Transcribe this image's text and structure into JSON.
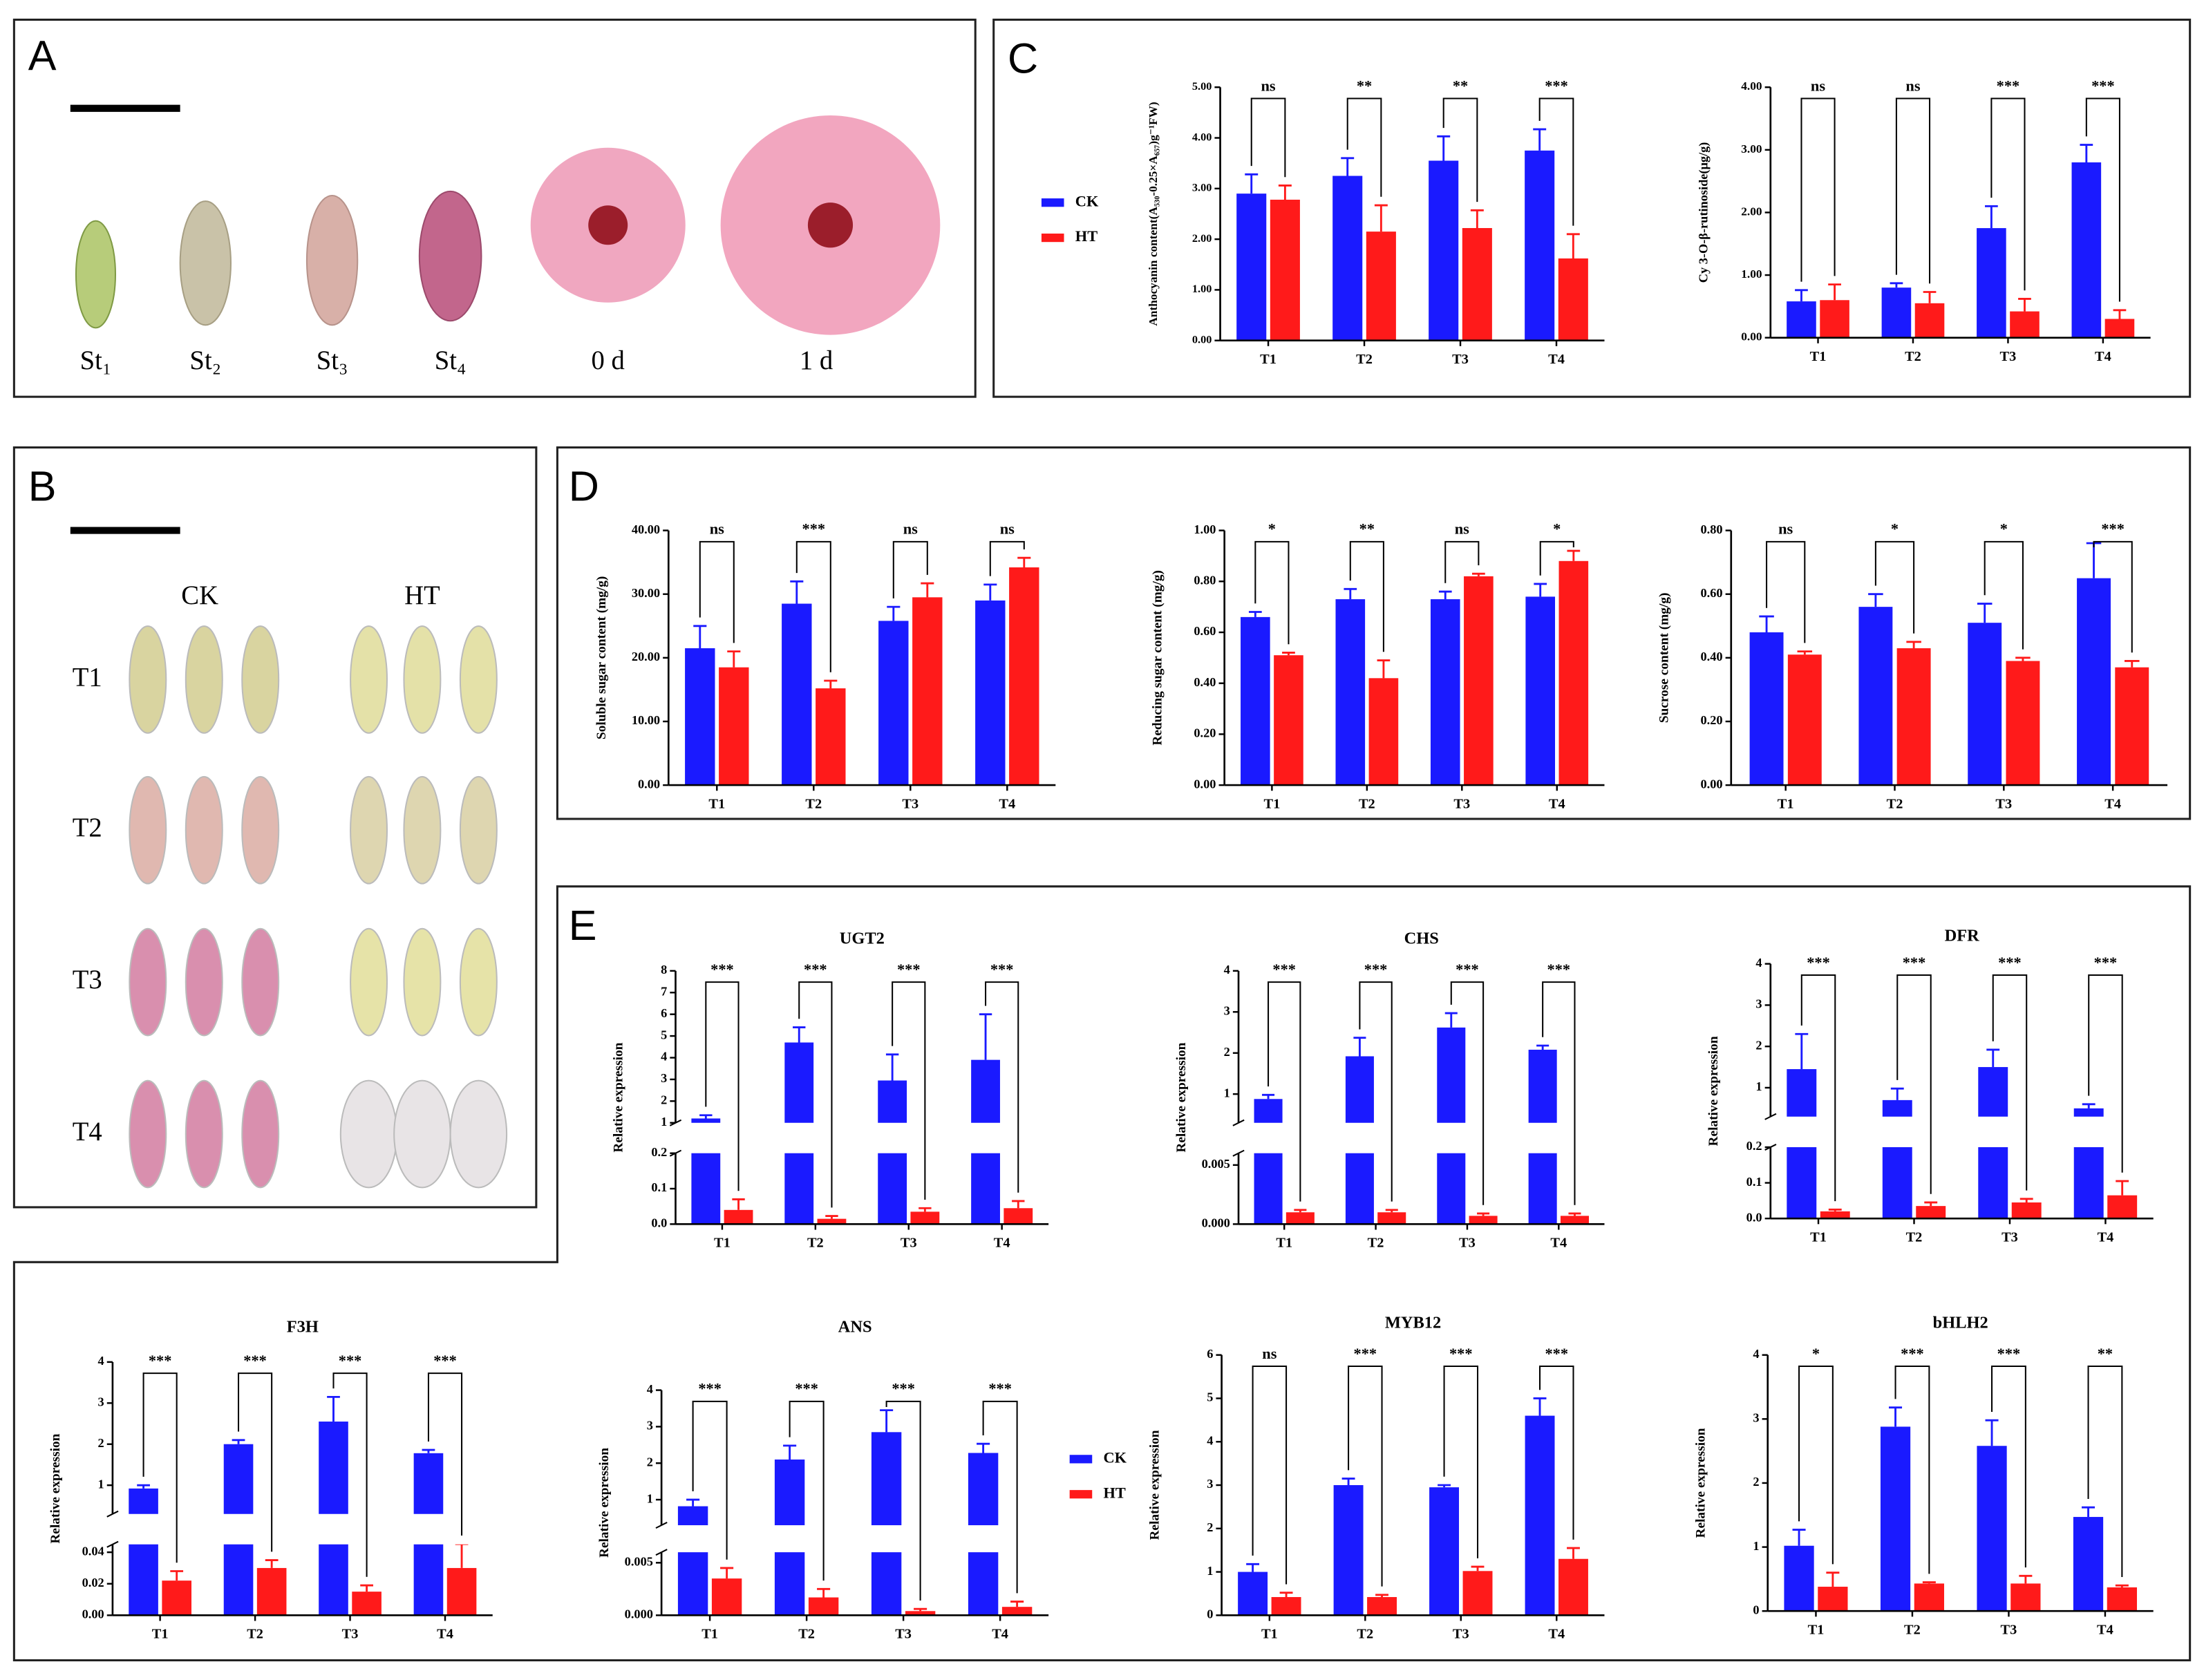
{
  "panel_labels": [
    "A",
    "B",
    "C",
    "D",
    "E"
  ],
  "stages": [
    "St₁",
    "St₂",
    "St₃",
    "St₄",
    "0 d",
    "1 d"
  ],
  "treatments": [
    "CK",
    "HT"
  ],
  "rows": [
    "T1",
    "T2",
    "T3",
    "T4"
  ],
  "chart_data": [
    {
      "type": "bar",
      "ylabel": "Anthocyanin content(A₅₃₀-0.25×A₆₅₇)g⁻¹FW)",
      "legend": true,
      "categories": [
        "T1",
        "T2",
        "T3",
        "T4"
      ],
      "series": [
        {
          "name": "CK",
          "color": "#1a1aff",
          "values": [
            2.9,
            3.25,
            3.55,
            3.75
          ],
          "errors": [
            0.38,
            0.35,
            0.48,
            0.42
          ]
        },
        {
          "name": "HT",
          "color": "#ff1a1a",
          "values": [
            2.78,
            2.15,
            2.22,
            1.62
          ],
          "errors": [
            0.28,
            0.52,
            0.35,
            0.48
          ]
        }
      ],
      "significance": [
        "ns",
        "**",
        "**",
        "***"
      ],
      "ylim": [
        0,
        5
      ],
      "yticks": [
        {
          "value": 0,
          "label": "0.00"
        },
        {
          "value": 1,
          "label": "1.00"
        },
        {
          "value": 2,
          "label": "2.00"
        },
        {
          "value": 3,
          "label": "3.00"
        },
        {
          "value": 4,
          "label": "4.00"
        },
        {
          "value": 5,
          "label": "5.00"
        }
      ]
    },
    {
      "type": "bar",
      "ylabel": "Cy 3-O-β-rutinoside(μg/g)",
      "categories": [
        "T1",
        "T2",
        "T3",
        "T4"
      ],
      "series": [
        {
          "name": "CK",
          "color": "#1a1aff",
          "values": [
            0.58,
            0.8,
            1.75,
            2.8
          ],
          "errors": [
            0.18,
            0.07,
            0.35,
            0.28
          ]
        },
        {
          "name": "HT",
          "color": "#ff1a1a",
          "values": [
            0.6,
            0.55,
            0.42,
            0.3
          ],
          "errors": [
            0.25,
            0.18,
            0.2,
            0.14
          ]
        }
      ],
      "significance": [
        "ns",
        "ns",
        "***",
        "***"
      ],
      "ylim": [
        0,
        4
      ],
      "yticks": [
        {
          "value": 0,
          "label": "0.00"
        },
        {
          "value": 1,
          "label": "1.00"
        },
        {
          "value": 2,
          "label": "2.00"
        },
        {
          "value": 3,
          "label": "3.00"
        },
        {
          "value": 4,
          "label": "4.00"
        }
      ]
    },
    {
      "type": "bar",
      "ylabel": "Soluble sugar content (mg/g)",
      "categories": [
        "T1",
        "T2",
        "T3",
        "T4"
      ],
      "series": [
        {
          "name": "CK",
          "color": "#1a1aff",
          "values": [
            21.5,
            28.5,
            25.8,
            29
          ],
          "errors": [
            3.5,
            3.5,
            2.2,
            2.5
          ]
        },
        {
          "name": "HT",
          "color": "#ff1a1a",
          "values": [
            18.5,
            15.2,
            29.5,
            34.2
          ],
          "errors": [
            2.5,
            1.2,
            2.2,
            1.5
          ]
        }
      ],
      "significance": [
        "ns",
        "***",
        "ns",
        "ns"
      ],
      "ylim": [
        0,
        40
      ],
      "yticks": [
        {
          "value": 0,
          "label": "0.00"
        },
        {
          "value": 10,
          "label": "10.00"
        },
        {
          "value": 20,
          "label": "20.00"
        },
        {
          "value": 30,
          "label": "30.00"
        },
        {
          "value": 40,
          "label": "40.00"
        }
      ]
    },
    {
      "type": "bar",
      "ylabel": "Reducing sugar content (mg/g)",
      "categories": [
        "T1",
        "T2",
        "T3",
        "T4"
      ],
      "series": [
        {
          "name": "CK",
          "color": "#1a1aff",
          "values": [
            0.66,
            0.73,
            0.73,
            0.74
          ],
          "errors": [
            0.02,
            0.04,
            0.03,
            0.05
          ]
        },
        {
          "name": "HT",
          "color": "#ff1a1a",
          "values": [
            0.51,
            0.42,
            0.82,
            0.88
          ],
          "errors": [
            0.01,
            0.07,
            0.01,
            0.04
          ]
        }
      ],
      "significance": [
        "*",
        "**",
        "ns",
        "*"
      ],
      "ylim": [
        0,
        1
      ],
      "yticks": [
        {
          "value": 0,
          "label": "0.00"
        },
        {
          "value": 0.2,
          "label": "0.20"
        },
        {
          "value": 0.4,
          "label": "0.40"
        },
        {
          "value": 0.6,
          "label": "0.60"
        },
        {
          "value": 0.8,
          "label": "0.80"
        },
        {
          "value": 1,
          "label": "1.00"
        }
      ]
    },
    {
      "type": "bar",
      "ylabel": "Sucrose content (mg/g)",
      "categories": [
        "T1",
        "T2",
        "T3",
        "T4"
      ],
      "series": [
        {
          "name": "CK",
          "color": "#1a1aff",
          "values": [
            0.48,
            0.56,
            0.51,
            0.65
          ],
          "errors": [
            0.05,
            0.04,
            0.06,
            0.11
          ]
        },
        {
          "name": "HT",
          "color": "#ff1a1a",
          "values": [
            0.41,
            0.43,
            0.39,
            0.37
          ],
          "errors": [
            0.01,
            0.02,
            0.01,
            0.02
          ]
        }
      ],
      "significance": [
        "ns",
        "*",
        "*",
        "***"
      ],
      "ylim": [
        0,
        0.8
      ],
      "yticks": [
        {
          "value": 0,
          "label": "0.00"
        },
        {
          "value": 0.2,
          "label": "0.20"
        },
        {
          "value": 0.4,
          "label": "0.40"
        },
        {
          "value": 0.6,
          "label": "0.60"
        },
        {
          "value": 0.8,
          "label": "0.80"
        }
      ]
    },
    {
      "type": "bar",
      "title": "UGT2",
      "ylabel": "Relative expression",
      "categories": [
        "T1",
        "T2",
        "T3",
        "T4"
      ],
      "series": [
        {
          "name": "CK",
          "color": "#1a1aff",
          "values": [
            1.2,
            4.7,
            2.95,
            3.9
          ],
          "errors": [
            0.15,
            0.7,
            1.2,
            2.1
          ]
        },
        {
          "name": "HT",
          "color": "#ff1a1a",
          "values": [
            0.04,
            0.015,
            0.035,
            0.045
          ],
          "errors": [
            0.03,
            0.008,
            0.01,
            0.02
          ]
        }
      ],
      "significance": [
        "***",
        "***",
        "***",
        "***"
      ],
      "segments": [
        {
          "ylim": [
            0,
            0.2
          ],
          "yticks": [
            {
              "value": 0,
              "label": "0.0"
            },
            0.1,
            0.2
          ]
        },
        {
          "ylim": [
            1,
            8
          ],
          "yticks": [
            1,
            2,
            3,
            4,
            5,
            6,
            7,
            8
          ]
        }
      ]
    },
    {
      "type": "bar",
      "title": "CHS",
      "ylabel": "Relative expression",
      "categories": [
        "T1",
        "T2",
        "T3",
        "T4"
      ],
      "series": [
        {
          "name": "CK",
          "color": "#1a1aff",
          "values": [
            0.88,
            1.92,
            2.62,
            2.08
          ],
          "errors": [
            0.1,
            0.45,
            0.35,
            0.1
          ]
        },
        {
          "name": "HT",
          "color": "#ff1a1a",
          "values": [
            0.001,
            0.001,
            0.0007,
            0.0007
          ],
          "errors": [
            0.0002,
            0.0002,
            0.0002,
            0.0002
          ]
        }
      ],
      "significance": [
        "***",
        "***",
        "***",
        "***"
      ],
      "segments": [
        {
          "ylim": [
            0,
            0.006
          ],
          "yticks": [
            {
              "value": 0,
              "label": "0.000"
            },
            0.005
          ]
        },
        {
          "ylim": [
            0.3,
            4
          ],
          "yticks": [
            1,
            2,
            3,
            4
          ]
        }
      ]
    },
    {
      "type": "bar",
      "title": "DFR",
      "ylabel": "Relative expression",
      "categories": [
        "T1",
        "T2",
        "T3",
        "T4"
      ],
      "series": [
        {
          "name": "CK",
          "color": "#1a1aff",
          "values": [
            1.45,
            0.7,
            1.5,
            0.5
          ],
          "errors": [
            0.85,
            0.28,
            0.42,
            0.1
          ]
        },
        {
          "name": "HT",
          "color": "#ff1a1a",
          "values": [
            0.02,
            0.035,
            0.045,
            0.065
          ],
          "errors": [
            0.005,
            0.01,
            0.01,
            0.04
          ]
        }
      ],
      "significance": [
        "***",
        "***",
        "***",
        "***"
      ],
      "segments": [
        {
          "ylim": [
            0,
            0.2
          ],
          "yticks": [
            {
              "value": 0,
              "label": "0.0"
            },
            0.1,
            0.2
          ]
        },
        {
          "ylim": [
            0.3,
            4
          ],
          "yticks": [
            1,
            2,
            3,
            4
          ]
        }
      ]
    },
    {
      "type": "bar",
      "title": "F3H",
      "ylabel": "Relative expression",
      "categories": [
        "T1",
        "T2",
        "T3",
        "T4"
      ],
      "series": [
        {
          "name": "CK",
          "color": "#1a1aff",
          "values": [
            0.92,
            2,
            2.55,
            1.78
          ],
          "errors": [
            0.08,
            0.1,
            0.6,
            0.08
          ]
        },
        {
          "name": "HT",
          "color": "#ff1a1a",
          "values": [
            0.022,
            0.03,
            0.015,
            0.03
          ],
          "errors": [
            0.006,
            0.005,
            0.004,
            0.018
          ]
        }
      ],
      "significance": [
        "***",
        "***",
        "***",
        "***"
      ],
      "segments": [
        {
          "ylim": [
            0,
            0.045
          ],
          "yticks": [
            {
              "value": 0,
              "label": "0.00"
            },
            0.02,
            0.04
          ]
        },
        {
          "ylim": [
            0.3,
            4
          ],
          "yticks": [
            1,
            2,
            3,
            4
          ]
        }
      ]
    },
    {
      "type": "bar",
      "title": "ANS",
      "ylabel": "Relative expression",
      "legend": true,
      "categories": [
        "T1",
        "T2",
        "T3",
        "T4"
      ],
      "series": [
        {
          "name": "CK",
          "color": "#1a1aff",
          "values": [
            0.82,
            2.1,
            2.85,
            2.28
          ],
          "errors": [
            0.18,
            0.38,
            0.6,
            0.25
          ]
        },
        {
          "name": "HT",
          "color": "#ff1a1a",
          "values": [
            0.0035,
            0.0017,
            0.0004,
            0.0008
          ],
          "errors": [
            0.001,
            0.0008,
            0.0002,
            0.0005
          ]
        }
      ],
      "significance": [
        "***",
        "***",
        "***",
        "***"
      ],
      "segments": [
        {
          "ylim": [
            0,
            0.006
          ],
          "yticks": [
            {
              "value": 0,
              "label": "0.000"
            },
            0.005
          ]
        },
        {
          "ylim": [
            0.3,
            4
          ],
          "yticks": [
            1,
            2,
            3,
            4
          ]
        }
      ]
    },
    {
      "type": "bar",
      "title": "MYB12",
      "ylabel": "Relative expression",
      "categories": [
        "T1",
        "T2",
        "T3",
        "T4"
      ],
      "series": [
        {
          "name": "CK",
          "color": "#1a1aff",
          "values": [
            1,
            3,
            2.95,
            4.6
          ],
          "errors": [
            0.18,
            0.15,
            0.05,
            0.4
          ]
        },
        {
          "name": "HT",
          "color": "#ff1a1a",
          "values": [
            0.42,
            0.42,
            1.02,
            1.3
          ],
          "errors": [
            0.1,
            0.05,
            0.1,
            0.25
          ]
        }
      ],
      "significance": [
        "ns",
        "***",
        "***",
        "***"
      ],
      "ylim": [
        0,
        6
      ],
      "yticks": [
        0,
        1,
        2,
        3,
        4,
        5,
        6
      ]
    },
    {
      "type": "bar",
      "title": "bHLH2",
      "ylabel": "Relative expression",
      "categories": [
        "T1",
        "T2",
        "T3",
        "T4"
      ],
      "series": [
        {
          "name": "CK",
          "color": "#1a1aff",
          "values": [
            1.02,
            2.88,
            2.58,
            1.47
          ],
          "errors": [
            0.25,
            0.3,
            0.4,
            0.15
          ]
        },
        {
          "name": "HT",
          "color": "#ff1a1a",
          "values": [
            0.38,
            0.43,
            0.43,
            0.37
          ],
          "errors": [
            0.22,
            0.02,
            0.12,
            0.03
          ]
        }
      ],
      "significance": [
        "*",
        "***",
        "***",
        "**"
      ],
      "ylim": [
        0,
        4
      ],
      "yticks": [
        0,
        1,
        2,
        3,
        4
      ]
    }
  ]
}
